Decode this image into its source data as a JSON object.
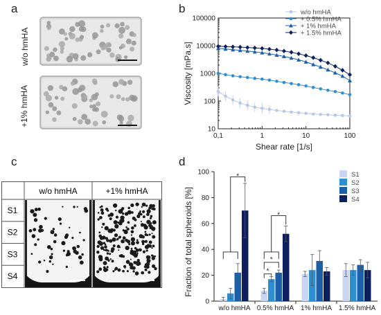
{
  "panels": {
    "a": {
      "letter": "a",
      "row_labels": [
        "w/o hmHA",
        "+1% hmHA"
      ]
    },
    "b": {
      "letter": "b"
    },
    "c": {
      "letter": "c",
      "col_headers": [
        "w/o hmHA",
        "+1% hmHA"
      ],
      "row_labels": [
        "S1",
        "S2",
        "S3",
        "S4"
      ]
    },
    "d": {
      "letter": "d"
    }
  },
  "chart_data": [
    {
      "type": "line",
      "panel": "b",
      "xlabel": "Shear rate [1/s]",
      "ylabel": "Viscosity [mPa.s]",
      "xscale": "log",
      "yscale": "log",
      "xlim": [
        0.1,
        100
      ],
      "ylim": [
        10,
        100000
      ],
      "x_tick_labels": [
        "0,1",
        "1",
        "10",
        "100"
      ],
      "y_tick_labels": [
        "10",
        "100",
        "1000",
        "10000",
        "100000"
      ],
      "legend_position": "top-right",
      "x": [
        0.1,
        0.1468,
        0.2154,
        0.3162,
        0.4642,
        0.6813,
        1,
        1.468,
        2.154,
        3.162,
        4.642,
        6.813,
        10,
        14.68,
        21.54,
        31.62,
        46.42,
        68.13,
        100
      ],
      "series": [
        {
          "name": "w/o hmHA",
          "color": "#b8c7e8",
          "marker": "circle",
          "values": [
            220,
            150,
            110,
            85,
            70,
            60,
            55,
            50,
            46,
            43,
            40,
            38,
            36,
            34,
            33,
            32,
            31,
            30,
            29
          ]
        },
        {
          "name": "+ 0.5% hmHA",
          "color": "#2e8fd0",
          "marker": "circle",
          "values": [
            1000,
            900,
            820,
            760,
            710,
            660,
            620,
            570,
            520,
            470,
            430,
            390,
            350,
            310,
            275,
            245,
            220,
            195,
            170
          ]
        },
        {
          "name": "+ 1% hmHA",
          "color": "#1a5fa8",
          "marker": "triangle",
          "values": [
            8000,
            7600,
            7200,
            6800,
            6400,
            6000,
            5600,
            5100,
            4600,
            4100,
            3600,
            3100,
            2600,
            2100,
            1700,
            1350,
            1050,
            800,
            550
          ]
        },
        {
          "name": "+ 1.5% hmHA",
          "color": "#0d1f5c",
          "marker": "diamond",
          "values": [
            9500,
            9300,
            9100,
            8900,
            8600,
            8300,
            8000,
            7500,
            7000,
            6400,
            5800,
            5100,
            4400,
            3700,
            3000,
            2400,
            1800,
            1300,
            900
          ]
        }
      ]
    },
    {
      "type": "bar",
      "panel": "d",
      "ylabel": "Fraction of total spheroids [%]",
      "ylim": [
        0,
        100
      ],
      "y_tick_labels": [
        "0",
        "20",
        "40",
        "60",
        "80",
        "100"
      ],
      "categories": [
        "w/o hmHA",
        "0.5% hmHA",
        "1% hmHA",
        "1.5% hmHA"
      ],
      "legend_position": "top-right",
      "series": [
        {
          "name": "S1",
          "color": "#c9d6f1",
          "values": [
            1.5,
            8,
            21,
            24
          ],
          "errors": [
            1.5,
            2,
            2,
            5
          ]
        },
        {
          "name": "S2",
          "color": "#2e8fd0",
          "values": [
            6,
            17,
            24,
            24
          ],
          "errors": [
            4,
            2,
            12,
            4
          ]
        },
        {
          "name": "S3",
          "color": "#1a5fa8",
          "values": [
            22,
            22,
            31,
            28
          ],
          "errors": [
            7,
            2,
            8,
            4
          ]
        },
        {
          "name": "S4",
          "color": "#0d1f5c",
          "values": [
            70,
            52,
            23,
            24
          ],
          "errors": [
            21,
            6,
            3,
            6
          ]
        }
      ],
      "significance_label": "*"
    }
  ]
}
